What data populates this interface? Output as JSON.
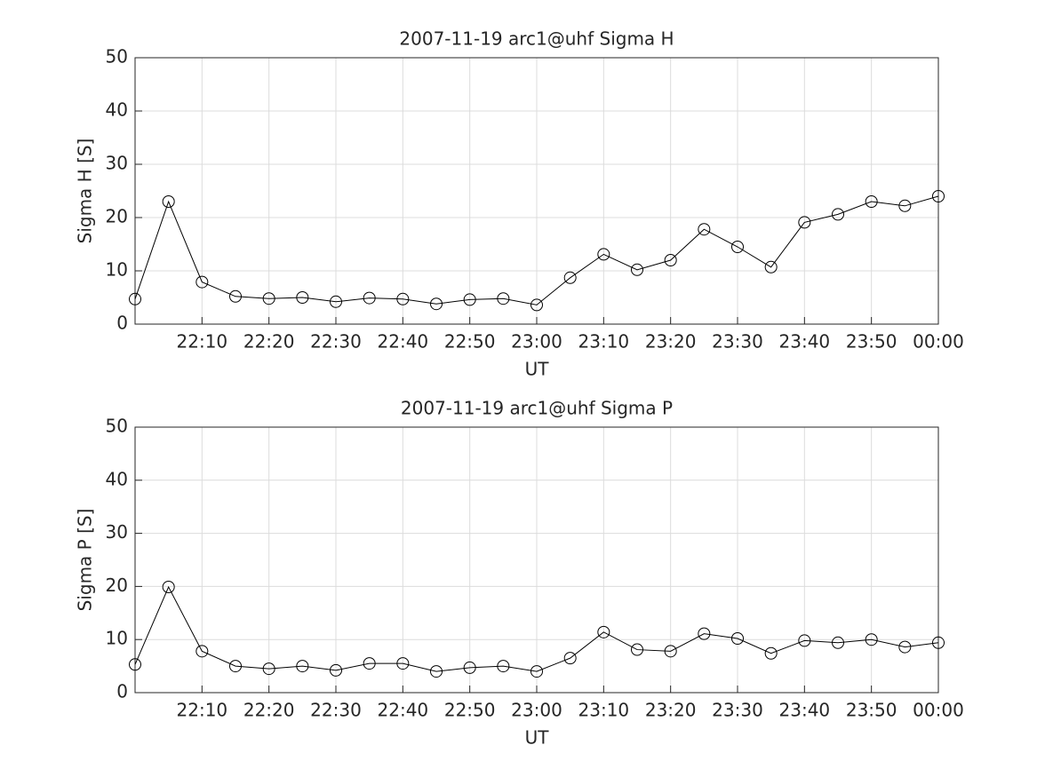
{
  "chart_data": [
    {
      "type": "line",
      "title": "2007-11-19  arc1@uhf Sigma H",
      "xlabel": "UT",
      "ylabel": "Sigma H [S]",
      "x": [
        "22:00",
        "22:05",
        "22:10",
        "22:15",
        "22:20",
        "22:25",
        "22:30",
        "22:35",
        "22:40",
        "22:45",
        "22:50",
        "22:55",
        "23:00",
        "23:05",
        "23:10",
        "23:15",
        "23:20",
        "23:25",
        "23:30",
        "23:35",
        "23:40",
        "23:45",
        "23:50",
        "23:55",
        "00:00"
      ],
      "series": [
        {
          "name": "Sigma H",
          "color": "#000000",
          "values": [
            4.7,
            23.0,
            7.9,
            5.2,
            4.8,
            5.0,
            4.2,
            4.9,
            4.7,
            3.8,
            4.6,
            4.8,
            3.6,
            8.7,
            13.1,
            10.2,
            12.0,
            17.8,
            14.5,
            10.7,
            19.1,
            20.6,
            23.0,
            22.2,
            24.0
          ]
        }
      ],
      "xlim": [
        "22:00",
        "00:00"
      ],
      "xticks": [
        "22:10",
        "22:20",
        "22:30",
        "22:40",
        "22:50",
        "23:00",
        "23:10",
        "23:20",
        "23:30",
        "23:40",
        "23:50",
        "00:00"
      ],
      "ylim": [
        0,
        50
      ],
      "yticks": [
        0,
        10,
        20,
        30,
        40,
        50
      ],
      "grid": true
    },
    {
      "type": "line",
      "title": "2007-11-19  arc1@uhf Sigma P",
      "xlabel": "UT",
      "ylabel": "Sigma P [S]",
      "x": [
        "22:00",
        "22:05",
        "22:10",
        "22:15",
        "22:20",
        "22:25",
        "22:30",
        "22:35",
        "22:40",
        "22:45",
        "22:50",
        "22:55",
        "23:00",
        "23:05",
        "23:10",
        "23:15",
        "23:20",
        "23:25",
        "23:30",
        "23:35",
        "23:40",
        "23:45",
        "23:50",
        "23:55",
        "00:00"
      ],
      "series": [
        {
          "name": "Sigma P",
          "color": "#000000",
          "values": [
            5.3,
            19.9,
            7.8,
            5.0,
            4.5,
            5.0,
            4.2,
            5.5,
            5.5,
            4.0,
            4.7,
            5.0,
            4.0,
            6.5,
            11.4,
            8.1,
            7.8,
            11.1,
            10.2,
            7.4,
            9.8,
            9.4,
            10.0,
            8.6,
            9.4
          ]
        }
      ],
      "xlim": [
        "22:00",
        "00:00"
      ],
      "xticks": [
        "22:10",
        "22:20",
        "22:30",
        "22:40",
        "22:50",
        "23:00",
        "23:10",
        "23:20",
        "23:30",
        "23:40",
        "23:50",
        "00:00"
      ],
      "ylim": [
        0,
        50
      ],
      "yticks": [
        0,
        10,
        20,
        30,
        40,
        50
      ],
      "grid": true
    }
  ]
}
